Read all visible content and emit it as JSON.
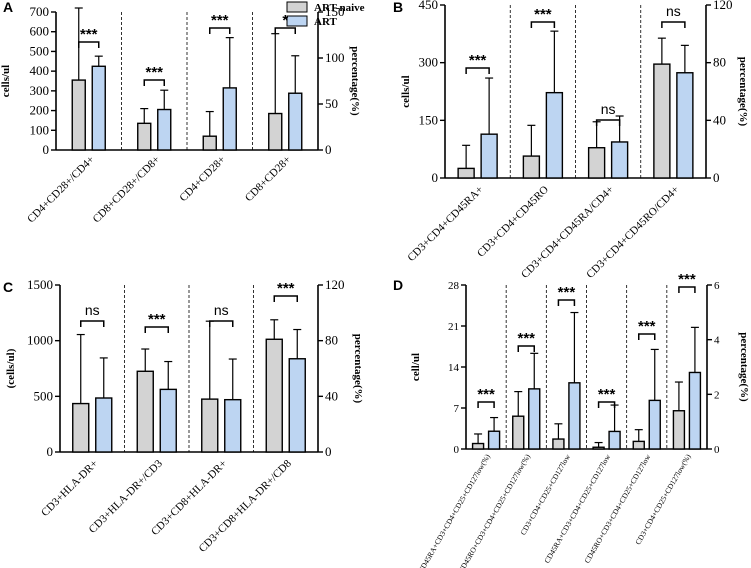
{
  "legend": {
    "colors": {
      "naive": "#d3d3d3",
      "art": "#bdd5f2"
    }
  },
  "chart_data": [
    {
      "panel": "A",
      "type": "bar",
      "legend": [
        "ART-naive",
        "ART"
      ],
      "ylabel": "cells/ul",
      "y2label": "percentage(%)",
      "ylim": [
        0,
        700
      ],
      "yticks": [
        0,
        100,
        200,
        300,
        400,
        500,
        600,
        700
      ],
      "y2lim": [
        0,
        150
      ],
      "y2ticks": [
        0,
        50,
        100,
        150
      ],
      "categories": [
        "CD4+CD28+/CD4+",
        "CD8+CD28+/CD8+",
        "CD4+CD28+",
        "CD8+CD28+"
      ],
      "axis": [
        "right",
        "right",
        "left",
        "left"
      ],
      "series": [
        {
          "name": "ART-naive",
          "values": [
            76,
            29,
            70,
            185
          ],
          "err": [
            105,
            16,
            125,
            405
          ]
        },
        {
          "name": "ART",
          "values": [
            91,
            44,
            315,
            288
          ],
          "err": [
            11,
            21,
            255,
            190
          ]
        }
      ],
      "significance": [
        "***",
        "***",
        "***",
        "*"
      ]
    },
    {
      "panel": "B",
      "type": "bar",
      "ylabel": "cells/ul",
      "y2label": "percentage(%)",
      "ylim": [
        0,
        450
      ],
      "yticks": [
        0,
        150,
        300,
        450
      ],
      "y2lim": [
        0,
        120
      ],
      "y2ticks": [
        0,
        40,
        80,
        120
      ],
      "categories": [
        "CD3+CD4+CD45RA+",
        "CD3+CD4+CD45RO",
        "CD3+CD4+CD45RA/CD4+",
        "CD3+CD4+CD45RO/CD4+"
      ],
      "axis": [
        "left",
        "left",
        "right",
        "right"
      ],
      "series": [
        {
          "name": "ART-naive",
          "values": [
            25,
            57,
            21,
            79
          ],
          "err": [
            60,
            80,
            18,
            18
          ]
        },
        {
          "name": "ART",
          "values": [
            114,
            222,
            25,
            73
          ],
          "err": [
            146,
            160,
            18,
            19
          ]
        }
      ],
      "significance": [
        "***",
        "***",
        "ns",
        "ns"
      ]
    },
    {
      "panel": "C",
      "type": "bar",
      "ylabel": "(cells/ul)",
      "y2label": "percentage(%)",
      "ylim": [
        0,
        1500
      ],
      "yticks": [
        0,
        500,
        1000,
        1500
      ],
      "y2lim": [
        0,
        120
      ],
      "y2ticks": [
        0,
        40,
        80,
        120
      ],
      "categories": [
        "CD3+HLA-DR+",
        "CD3+HLA-DR+/CD3",
        "CD3+CD8+HLA-DR+",
        "CD3+CD8+HLA-DR+/CD8"
      ],
      "axis": [
        "left",
        "right",
        "left",
        "right"
      ],
      "series": [
        {
          "name": "ART-naive",
          "values": [
            435,
            58,
            475,
            81
          ],
          "err": [
            620,
            16,
            700,
            14
          ]
        },
        {
          "name": "ART",
          "values": [
            485,
            45,
            470,
            67
          ],
          "err": [
            360,
            20,
            365,
            21
          ]
        }
      ],
      "significance": [
        "ns",
        "***",
        "ns",
        "***"
      ]
    },
    {
      "panel": "D",
      "type": "bar",
      "ylabel": "cell/ul",
      "y2label": "percentage(%)",
      "ylim": [
        0,
        28
      ],
      "yticks": [
        0,
        7,
        14,
        21,
        28
      ],
      "y2lim": [
        0,
        6
      ],
      "y2ticks": [
        0,
        2,
        4,
        6
      ],
      "categories": [
        "CD45RA+CD3+CD4+CD25+CD127low(%)",
        "CD45RO+CD3+CD4+CD25+CD127low(%)",
        "CD3+CD4+CD25+CD127low",
        "CD45RA+CD3+CD4+CD25+CD127low",
        "CD45RO+CD3+CD4+CD25+CD127low",
        "CD3+CD4+CD25+CD127low(%)"
      ],
      "axis": [
        "right",
        "right",
        "left",
        "left",
        "left",
        "right"
      ],
      "series": [
        {
          "name": "ART-naive",
          "values": [
            0.2,
            1.2,
            1.7,
            0.3,
            1.3,
            1.4
          ],
          "err": [
            0.35,
            0.9,
            2.6,
            0.8,
            2.0,
            1.05
          ]
        },
        {
          "name": "ART",
          "values": [
            0.65,
            2.2,
            11.3,
            3.0,
            8.3,
            2.8
          ],
          "err": [
            0.5,
            1.3,
            12.0,
            4.5,
            8.7,
            1.65
          ]
        }
      ],
      "significance": [
        "***",
        "***",
        "***",
        "***",
        "***",
        "***"
      ]
    }
  ]
}
